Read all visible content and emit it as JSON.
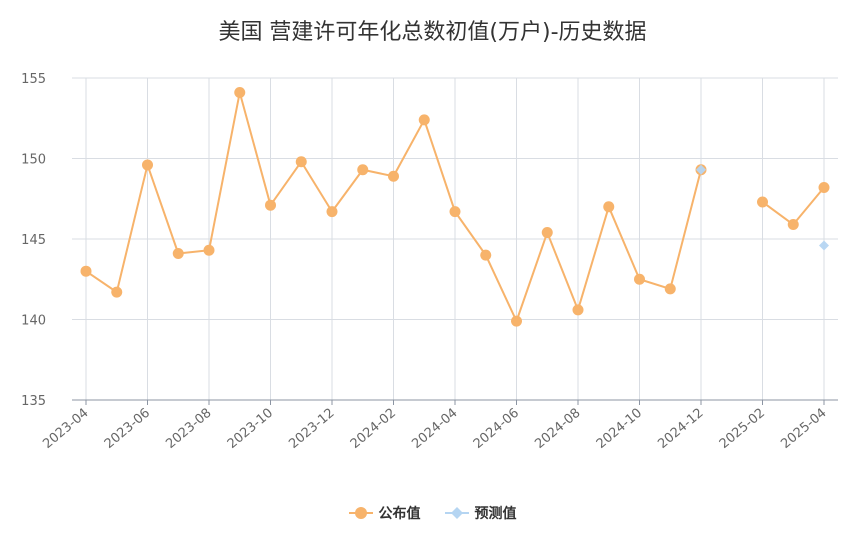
{
  "chart_data": {
    "type": "line",
    "title": "美国 营建许可年化总数初值(万户)-历史数据",
    "xlabel": "",
    "ylabel": "",
    "ylim": [
      135,
      155
    ],
    "y_ticks": [
      135,
      140,
      145,
      150,
      155
    ],
    "x_tick_labels": [
      "2023-04",
      "2023-06",
      "2023-08",
      "2023-10",
      "2023-12",
      "2024-02",
      "2024-04",
      "2024-06",
      "2024-08",
      "2024-10",
      "2024-12",
      "2025-02",
      "2025-04"
    ],
    "x": [
      "2023-04",
      "2023-05",
      "2023-06",
      "2023-07",
      "2023-08",
      "2023-09",
      "2023-10",
      "2023-11",
      "2023-12",
      "2024-01",
      "2024-02",
      "2024-03",
      "2024-04",
      "2024-05",
      "2024-06",
      "2024-07",
      "2024-08",
      "2024-09",
      "2024-10",
      "2024-11",
      "2024-12",
      "2025-01",
      "2025-02",
      "2025-03",
      "2025-04"
    ],
    "grid": true,
    "legend_position": "bottom",
    "series": [
      {
        "name": "公布值",
        "color": "#f7b36b",
        "marker": "circle",
        "values": [
          143.0,
          141.7,
          149.6,
          144.1,
          144.3,
          154.1,
          147.1,
          149.8,
          146.7,
          149.3,
          148.9,
          152.4,
          146.7,
          144.0,
          139.9,
          145.4,
          140.6,
          147.0,
          142.5,
          141.9,
          149.3,
          null,
          147.3,
          145.9,
          148.2
        ]
      },
      {
        "name": "预测值",
        "color": "#b5d5f2",
        "marker": "diamond",
        "values": [
          null,
          null,
          null,
          null,
          null,
          null,
          null,
          null,
          null,
          null,
          null,
          null,
          null,
          null,
          null,
          null,
          null,
          null,
          null,
          null,
          149.3,
          null,
          null,
          null,
          144.6
        ]
      }
    ]
  }
}
